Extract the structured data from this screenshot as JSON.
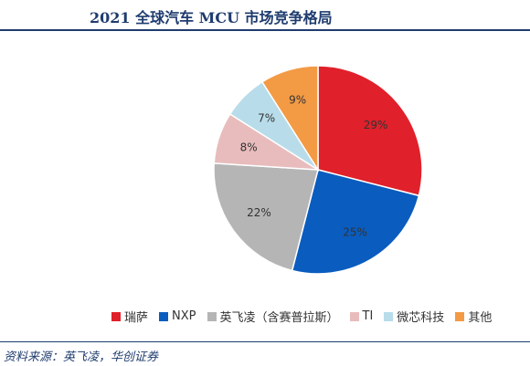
{
  "chart_data": {
    "type": "pie",
    "title": "2021 全球汽车 MCU 市场竞争格局",
    "start_angle_deg": 0,
    "direction": "clockwise",
    "legend_position": "bottom",
    "slices": [
      {
        "name": "瑞萨",
        "value": 29,
        "label": "29%",
        "color": "#e0202a"
      },
      {
        "name": "NXP",
        "value": 25,
        "label": "25%",
        "color": "#0a5cbf"
      },
      {
        "name": "英飞凌（含赛普拉斯）",
        "value": 22,
        "label": "22%",
        "color": "#b5b5b5"
      },
      {
        "name": "TI",
        "value": 8,
        "label": "8%",
        "color": "#e8bcbc"
      },
      {
        "name": "微芯科技",
        "value": 7,
        "label": "7%",
        "color": "#b8dcea"
      },
      {
        "name": "其他",
        "value": 9,
        "label": "9%",
        "color": "#f39a45"
      }
    ]
  },
  "source": "资料来源：英飞凌，华创证券"
}
